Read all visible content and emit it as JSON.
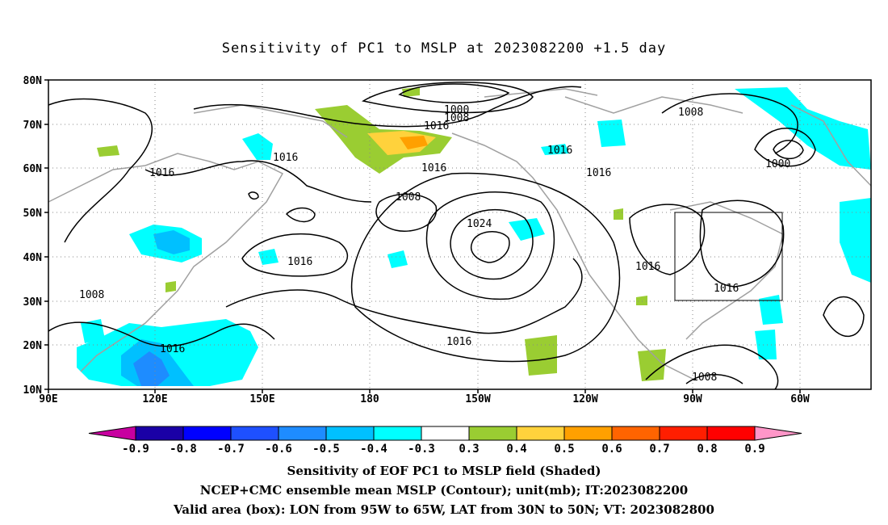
{
  "title": "Sensitivity of PC1 to MSLP at 2023082200 +1.5 day",
  "lat_labels": [
    "80N",
    "70N",
    "60N",
    "50N",
    "40N",
    "30N",
    "20N",
    "10N"
  ],
  "lon_labels": [
    "90E",
    "120E",
    "150E",
    "180",
    "150W",
    "120W",
    "90W",
    "60W"
  ],
  "contour_labels": [
    "1000",
    "1008",
    "1016",
    "1016",
    "1016",
    "1008",
    "1016",
    "1016",
    "1016",
    "1024",
    "1016",
    "1016",
    "1008",
    "1008",
    "1000",
    "1016",
    "1016",
    "1016",
    "1008"
  ],
  "colorbar": {
    "labels": [
      "-0.9",
      "-0.8",
      "-0.7",
      "-0.6",
      "-0.5",
      "-0.4",
      "-0.3",
      "0.3",
      "0.4",
      "0.5",
      "0.6",
      "0.7",
      "0.8",
      "0.9"
    ],
    "colors": [
      "#1a00a6",
      "#0000ff",
      "#1e50ff",
      "#1e8cff",
      "#00c0ff",
      "#00ffff",
      "#ffffff",
      "#9acd32",
      "#ffd23c",
      "#ffa000",
      "#ff6400",
      "#ff1e00",
      "#ff0000"
    ],
    "left_cap_color": "#c800a0",
    "right_cap_color": "#ff96c8"
  },
  "valid_area": {
    "lon": [
      "95W",
      "65W"
    ],
    "lat": [
      "30N",
      "50N"
    ]
  },
  "captions": [
    "Sensitivity of EOF PC1 to MSLP field (Shaded)",
    "NCEP+CMC ensemble mean MSLP (Contour); unit(mb); IT:2023082200",
    "Valid area (box): LON from 95W to 65W, LAT from 30N to 50N; VT: 2023082800"
  ]
}
